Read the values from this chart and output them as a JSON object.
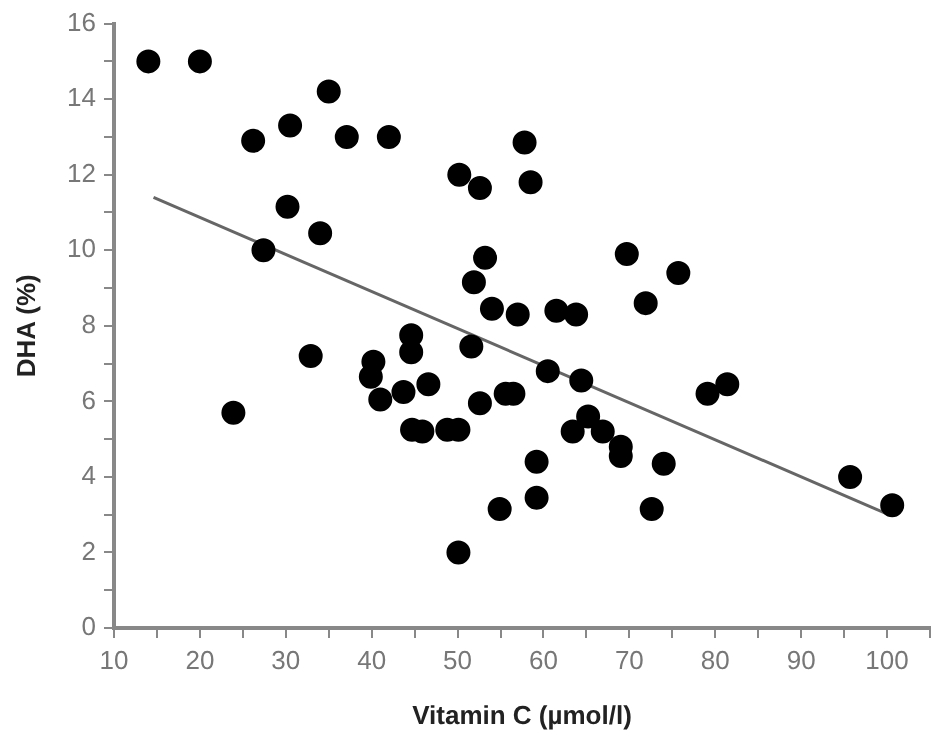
{
  "chart_data": {
    "type": "scatter",
    "xlabel": "Vitamin C (µmol/l)",
    "ylabel": "DHA (%)",
    "xlim": [
      10,
      105
    ],
    "xticks": [
      10,
      {
        "value": 15,
        "label": null
      },
      20,
      {
        "value": 25,
        "label": null
      },
      30,
      {
        "value": 35,
        "label": null
      },
      40,
      {
        "value": 45,
        "label": null
      },
      50,
      {
        "value": 55,
        "label": null
      },
      60,
      {
        "value": 65,
        "label": null
      },
      70,
      {
        "value": 75,
        "label": null
      },
      80,
      {
        "value": 85,
        "label": null
      },
      90,
      {
        "value": 95,
        "label": null
      },
      100,
      {
        "value": 105,
        "label": null
      }
    ],
    "ylim": [
      0,
      16
    ],
    "yticks": [
      0,
      {
        "value": 1,
        "label": null
      },
      2,
      {
        "value": 3,
        "label": null
      },
      4,
      {
        "value": 5,
        "label": null
      },
      6,
      {
        "value": 7,
        "label": null
      },
      8,
      {
        "value": 9,
        "label": null
      },
      10,
      {
        "value": 11,
        "label": null
      },
      12,
      {
        "value": 13,
        "label": null
      },
      14,
      {
        "value": 15,
        "label": null
      },
      16
    ],
    "grid": false,
    "legend": false,
    "marker": "circle",
    "series": [
      {
        "type": "scatter",
        "color": "#000000",
        "x": [
          14,
          20,
          26.2,
          30.5,
          35,
          37.1,
          42,
          50.2,
          52.6,
          30.2,
          34,
          27.4,
          53.2,
          51.9,
          54,
          57,
          44.6,
          57.8,
          58.5,
          69.7,
          75.7,
          71.9,
          61.5,
          63.8,
          23.9,
          32.9,
          44.6,
          40.2,
          39.9,
          41,
          43.7,
          46.6,
          44.7,
          45.9,
          48.8,
          50.1,
          51.6,
          52.6,
          55.6,
          56.5,
          54.9,
          50.1,
          60.5,
          64.4,
          63.4,
          65.2,
          66.9,
          69,
          69,
          74,
          59.2,
          59.2,
          72.6,
          79.1,
          81.4,
          95.7,
          100.6
        ],
        "values": [
          15,
          15,
          12.9,
          13.3,
          14.2,
          13,
          13,
          12,
          11.65,
          11.15,
          10.45,
          10,
          9.8,
          9.15,
          8.45,
          8.3,
          7.75,
          12.85,
          11.8,
          9.9,
          9.4,
          8.6,
          8.4,
          8.3,
          5.7,
          7.2,
          7.3,
          7.05,
          6.65,
          6.05,
          6.25,
          6.45,
          5.25,
          5.2,
          5.25,
          5.25,
          7.45,
          5.95,
          6.2,
          6.2,
          3.15,
          2,
          6.8,
          6.55,
          5.2,
          5.6,
          5.2,
          4.8,
          4.55,
          4.35,
          4.4,
          3.45,
          3.15,
          6.2,
          6.45,
          4,
          3.25
        ]
      },
      {
        "type": "line",
        "color": "#666666",
        "x": [
          14.6,
          100.2
        ],
        "values": [
          11.4,
          3.0
        ],
        "marker": "none",
        "line_style": "solid"
      }
    ]
  }
}
